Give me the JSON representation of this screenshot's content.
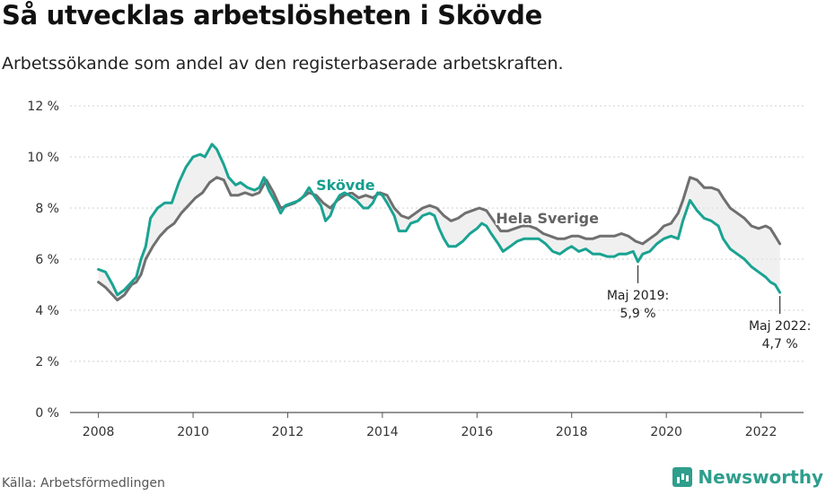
{
  "title": "Så utvecklas arbetslösheten i Skövde",
  "subtitle": "Arbetssökande som andel av den registerbaserade arbetskraften.",
  "source": "Källa: Arbetsförmedlingen",
  "brand": {
    "name": "Newsworthy",
    "icon": "bar-chart-icon",
    "color": "#2f9e8d"
  },
  "chart_data": {
    "type": "line",
    "title": "Så utvecklas arbetslösheten i Skövde",
    "subtitle": "Arbetssökande som andel av den registerbaserade arbetskraften.",
    "xlabel": "",
    "ylabel": "",
    "ylim": [
      0,
      12
    ],
    "xlim": [
      2007.4,
      2022.9
    ],
    "y_ticks": [
      "0 %",
      "2 %",
      "4 %",
      "6 %",
      "8 %",
      "10 %",
      "12 %"
    ],
    "x_ticks": [
      "2008",
      "2010",
      "2012",
      "2014",
      "2016",
      "2018",
      "2020",
      "2022"
    ],
    "grid": true,
    "series": [
      {
        "name": "Skövde",
        "color": "#1aa392",
        "points": [
          [
            2008.0,
            5.6
          ],
          [
            2008.15,
            5.5
          ],
          [
            2008.3,
            5.0
          ],
          [
            2008.4,
            4.6
          ],
          [
            2008.55,
            4.8
          ],
          [
            2008.7,
            5.1
          ],
          [
            2008.8,
            5.3
          ],
          [
            2008.9,
            6.0
          ],
          [
            2009.0,
            6.5
          ],
          [
            2009.1,
            7.6
          ],
          [
            2009.25,
            8.0
          ],
          [
            2009.4,
            8.2
          ],
          [
            2009.55,
            8.2
          ],
          [
            2009.7,
            9.0
          ],
          [
            2009.85,
            9.6
          ],
          [
            2010.0,
            10.0
          ],
          [
            2010.15,
            10.1
          ],
          [
            2010.25,
            10.0
          ],
          [
            2010.4,
            10.5
          ],
          [
            2010.5,
            10.3
          ],
          [
            2010.65,
            9.7
          ],
          [
            2010.75,
            9.2
          ],
          [
            2010.9,
            8.9
          ],
          [
            2011.0,
            9.0
          ],
          [
            2011.15,
            8.8
          ],
          [
            2011.3,
            8.7
          ],
          [
            2011.4,
            8.8
          ],
          [
            2011.5,
            9.2
          ],
          [
            2011.6,
            8.7
          ],
          [
            2011.75,
            8.2
          ],
          [
            2011.85,
            7.8
          ],
          [
            2011.95,
            8.1
          ],
          [
            2012.1,
            8.2
          ],
          [
            2012.25,
            8.3
          ],
          [
            2012.35,
            8.5
          ],
          [
            2012.45,
            8.8
          ],
          [
            2012.55,
            8.5
          ],
          [
            2012.7,
            8.1
          ],
          [
            2012.8,
            7.5
          ],
          [
            2012.9,
            7.7
          ],
          [
            2013.0,
            8.2
          ],
          [
            2013.1,
            8.5
          ],
          [
            2013.2,
            8.6
          ],
          [
            2013.3,
            8.5
          ],
          [
            2013.45,
            8.3
          ],
          [
            2013.6,
            8.0
          ],
          [
            2013.7,
            8.0
          ],
          [
            2013.8,
            8.2
          ],
          [
            2013.9,
            8.6
          ],
          [
            2014.0,
            8.5
          ],
          [
            2014.1,
            8.2
          ],
          [
            2014.25,
            7.7
          ],
          [
            2014.35,
            7.1
          ],
          [
            2014.5,
            7.1
          ],
          [
            2014.6,
            7.4
          ],
          [
            2014.75,
            7.5
          ],
          [
            2014.85,
            7.7
          ],
          [
            2015.0,
            7.8
          ],
          [
            2015.1,
            7.7
          ],
          [
            2015.2,
            7.2
          ],
          [
            2015.3,
            6.8
          ],
          [
            2015.4,
            6.5
          ],
          [
            2015.55,
            6.5
          ],
          [
            2015.7,
            6.7
          ],
          [
            2015.85,
            7.0
          ],
          [
            2016.0,
            7.2
          ],
          [
            2016.1,
            7.4
          ],
          [
            2016.2,
            7.3
          ],
          [
            2016.3,
            7.0
          ],
          [
            2016.45,
            6.6
          ],
          [
            2016.55,
            6.3
          ],
          [
            2016.7,
            6.5
          ],
          [
            2016.85,
            6.7
          ],
          [
            2017.0,
            6.8
          ],
          [
            2017.15,
            6.8
          ],
          [
            2017.3,
            6.8
          ],
          [
            2017.45,
            6.6
          ],
          [
            2017.6,
            6.3
          ],
          [
            2017.75,
            6.2
          ],
          [
            2017.9,
            6.4
          ],
          [
            2018.0,
            6.5
          ],
          [
            2018.15,
            6.3
          ],
          [
            2018.3,
            6.4
          ],
          [
            2018.45,
            6.2
          ],
          [
            2018.6,
            6.2
          ],
          [
            2018.75,
            6.1
          ],
          [
            2018.9,
            6.1
          ],
          [
            2019.0,
            6.2
          ],
          [
            2019.15,
            6.2
          ],
          [
            2019.3,
            6.3
          ],
          [
            2019.4,
            5.9
          ],
          [
            2019.5,
            6.2
          ],
          [
            2019.65,
            6.3
          ],
          [
            2019.8,
            6.6
          ],
          [
            2019.95,
            6.8
          ],
          [
            2020.1,
            6.9
          ],
          [
            2020.25,
            6.8
          ],
          [
            2020.35,
            7.5
          ],
          [
            2020.5,
            8.3
          ],
          [
            2020.65,
            7.9
          ],
          [
            2020.8,
            7.6
          ],
          [
            2020.95,
            7.5
          ],
          [
            2021.1,
            7.3
          ],
          [
            2021.2,
            6.8
          ],
          [
            2021.35,
            6.4
          ],
          [
            2021.5,
            6.2
          ],
          [
            2021.65,
            6.0
          ],
          [
            2021.8,
            5.7
          ],
          [
            2021.95,
            5.5
          ],
          [
            2022.1,
            5.3
          ],
          [
            2022.2,
            5.1
          ],
          [
            2022.3,
            5.0
          ],
          [
            2022.4,
            4.7
          ]
        ]
      },
      {
        "name": "Hela Sverige",
        "color": "#6f6f6f",
        "points": [
          [
            2008.0,
            5.1
          ],
          [
            2008.15,
            4.9
          ],
          [
            2008.3,
            4.6
          ],
          [
            2008.4,
            4.4
          ],
          [
            2008.55,
            4.6
          ],
          [
            2008.7,
            5.0
          ],
          [
            2008.8,
            5.1
          ],
          [
            2008.9,
            5.4
          ],
          [
            2009.0,
            6.0
          ],
          [
            2009.15,
            6.5
          ],
          [
            2009.3,
            6.9
          ],
          [
            2009.45,
            7.2
          ],
          [
            2009.6,
            7.4
          ],
          [
            2009.75,
            7.8
          ],
          [
            2009.9,
            8.1
          ],
          [
            2010.05,
            8.4
          ],
          [
            2010.2,
            8.6
          ],
          [
            2010.35,
            9.0
          ],
          [
            2010.5,
            9.2
          ],
          [
            2010.65,
            9.1
          ],
          [
            2010.8,
            8.5
          ],
          [
            2010.95,
            8.5
          ],
          [
            2011.1,
            8.6
          ],
          [
            2011.25,
            8.5
          ],
          [
            2011.4,
            8.6
          ],
          [
            2011.55,
            9.1
          ],
          [
            2011.7,
            8.6
          ],
          [
            2011.85,
            8.0
          ],
          [
            2012.0,
            8.1
          ],
          [
            2012.15,
            8.2
          ],
          [
            2012.3,
            8.4
          ],
          [
            2012.45,
            8.6
          ],
          [
            2012.6,
            8.5
          ],
          [
            2012.75,
            8.2
          ],
          [
            2012.9,
            8.0
          ],
          [
            2013.05,
            8.3
          ],
          [
            2013.2,
            8.5
          ],
          [
            2013.35,
            8.6
          ],
          [
            2013.5,
            8.4
          ],
          [
            2013.65,
            8.5
          ],
          [
            2013.8,
            8.4
          ],
          [
            2013.95,
            8.6
          ],
          [
            2014.1,
            8.5
          ],
          [
            2014.25,
            8.0
          ],
          [
            2014.4,
            7.7
          ],
          [
            2014.55,
            7.6
          ],
          [
            2014.7,
            7.8
          ],
          [
            2014.85,
            8.0
          ],
          [
            2015.0,
            8.1
          ],
          [
            2015.15,
            8.0
          ],
          [
            2015.3,
            7.7
          ],
          [
            2015.45,
            7.5
          ],
          [
            2015.6,
            7.6
          ],
          [
            2015.75,
            7.8
          ],
          [
            2015.9,
            7.9
          ],
          [
            2016.05,
            8.0
          ],
          [
            2016.2,
            7.9
          ],
          [
            2016.35,
            7.5
          ],
          [
            2016.5,
            7.1
          ],
          [
            2016.65,
            7.1
          ],
          [
            2016.8,
            7.2
          ],
          [
            2016.95,
            7.3
          ],
          [
            2017.1,
            7.3
          ],
          [
            2017.25,
            7.2
          ],
          [
            2017.4,
            7.0
          ],
          [
            2017.55,
            6.9
          ],
          [
            2017.7,
            6.8
          ],
          [
            2017.85,
            6.8
          ],
          [
            2018.0,
            6.9
          ],
          [
            2018.15,
            6.9
          ],
          [
            2018.3,
            6.8
          ],
          [
            2018.45,
            6.8
          ],
          [
            2018.6,
            6.9
          ],
          [
            2018.75,
            6.9
          ],
          [
            2018.9,
            6.9
          ],
          [
            2019.05,
            7.0
          ],
          [
            2019.2,
            6.9
          ],
          [
            2019.35,
            6.7
          ],
          [
            2019.5,
            6.6
          ],
          [
            2019.65,
            6.8
          ],
          [
            2019.8,
            7.0
          ],
          [
            2019.95,
            7.3
          ],
          [
            2020.1,
            7.4
          ],
          [
            2020.25,
            7.8
          ],
          [
            2020.35,
            8.3
          ],
          [
            2020.5,
            9.2
          ],
          [
            2020.65,
            9.1
          ],
          [
            2020.8,
            8.8
          ],
          [
            2020.95,
            8.8
          ],
          [
            2021.1,
            8.7
          ],
          [
            2021.2,
            8.4
          ],
          [
            2021.35,
            8.0
          ],
          [
            2021.5,
            7.8
          ],
          [
            2021.65,
            7.6
          ],
          [
            2021.8,
            7.3
          ],
          [
            2021.95,
            7.2
          ],
          [
            2022.1,
            7.3
          ],
          [
            2022.2,
            7.2
          ],
          [
            2022.3,
            6.9
          ],
          [
            2022.4,
            6.6
          ]
        ]
      }
    ],
    "series_labels": [
      {
        "text": "Skövde",
        "x": 2012.6,
        "y": 8.7
      },
      {
        "text": "Hela Sverige",
        "x": 2016.4,
        "y": 7.4
      }
    ],
    "annotations": [
      {
        "line1": "Maj 2019:",
        "line2": "5,9 %",
        "x": 2019.4,
        "y": 5.9
      },
      {
        "line1": "Maj 2022:",
        "line2": "4,7 %",
        "x": 2022.4,
        "y": 4.7
      }
    ]
  }
}
